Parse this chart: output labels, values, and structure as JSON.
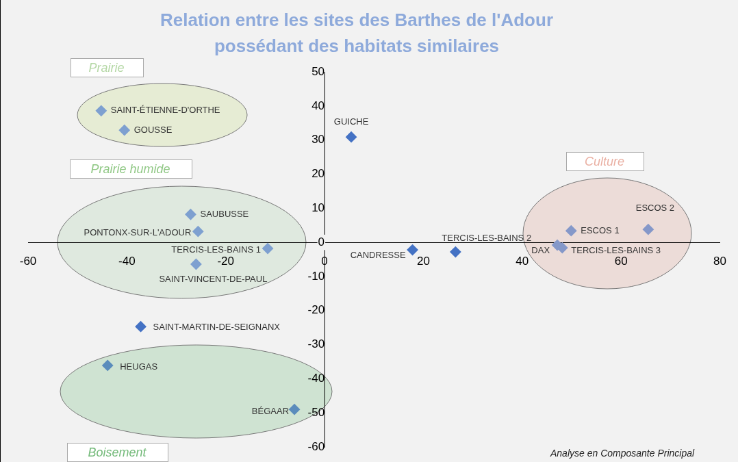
{
  "chart_data": {
    "type": "scatter",
    "title": "Relation entre les sites des Barthes de l'Adour\npossédant des habitats similaires",
    "series": [
      {
        "name": "SAINT-ÉTIENNE-D'ORTHE",
        "color": "#7ea0d0",
        "x": [
          -45.2
        ],
        "values": [
          38.6
        ]
      },
      {
        "name": "GOUSSE",
        "color": "#7ea0d0",
        "x": [
          -40.5
        ],
        "values": [
          32.9
        ]
      },
      {
        "name": "GUICHE",
        "color": "#4472c4",
        "x": [
          5.4
        ],
        "values": [
          30.9
        ]
      },
      {
        "name": "SAUBUSSE",
        "color": "#7ea0d0",
        "x": [
          -27.1
        ],
        "values": [
          8.2
        ]
      },
      {
        "name": "PONTONX-SUR-L'ADOUR",
        "color": "#7ea0d0",
        "x": [
          -25.6
        ],
        "values": [
          3.2
        ]
      },
      {
        "name": "TERCIS-LES-BAINS 1",
        "color": "#7ea0d0",
        "x": [
          -11.5
        ],
        "values": [
          -1.8
        ]
      },
      {
        "name": "SAINT-VINCENT-DE-PAUL",
        "color": "#7ea0d0",
        "x": [
          -26.0
        ],
        "values": [
          -6.4
        ]
      },
      {
        "name": "CANDRESSE",
        "color": "#4472c4",
        "x": [
          17.8
        ],
        "values": [
          -2.2
        ]
      },
      {
        "name": "TERCIS-LES-BAINS 2",
        "color": "#4472c4",
        "x": [
          26.5
        ],
        "values": [
          -2.8
        ]
      },
      {
        "name": "DAX",
        "color": "#8598c9",
        "x": [
          47.1
        ],
        "values": [
          -0.8
        ]
      },
      {
        "name": "TERCIS-LES-BAINS 3",
        "color": "#8598c9",
        "x": [
          48.1
        ],
        "values": [
          -1.6
        ]
      },
      {
        "name": "ESCOS 1",
        "color": "#8598c9",
        "x": [
          49.9
        ],
        "values": [
          3.4
        ]
      },
      {
        "name": "ESCOS 2",
        "color": "#8598c9",
        "x": [
          65.5
        ],
        "values": [
          3.8
        ]
      },
      {
        "name": "SAINT-MARTIN-DE-SEIGNANX",
        "color": "#4472c4",
        "x": [
          -37.2
        ],
        "values": [
          -24.7
        ]
      },
      {
        "name": "HEUGAS",
        "color": "#5b8cbc",
        "x": [
          -43.9
        ],
        "values": [
          -36.1
        ]
      },
      {
        "name": "BÉGAAR",
        "color": "#5b8cbc",
        "x": [
          -6.1
        ],
        "values": [
          -49.0
        ]
      }
    ],
    "xlim": [
      -60,
      80
    ],
    "xticks": [
      -60,
      -40,
      -20,
      0,
      20,
      40,
      60,
      80
    ],
    "ylim": [
      -60,
      50
    ],
    "yticks": [
      -60,
      -50,
      -40,
      -30,
      -20,
      -10,
      0,
      10,
      20,
      30,
      40,
      50
    ],
    "marker": "diamond",
    "grid": false,
    "legend": false,
    "annotations": [
      "Prairie",
      "Prairie humide",
      "Culture",
      "Boisement",
      "Analyse en Composante Principal"
    ]
  }
}
